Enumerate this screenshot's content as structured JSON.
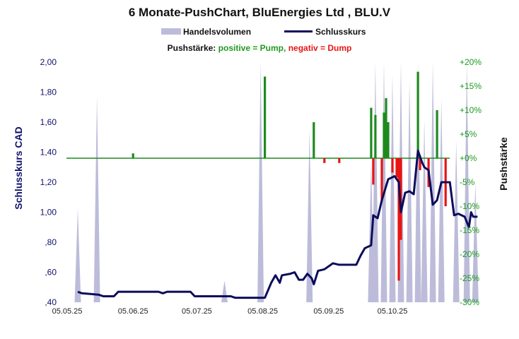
{
  "chart_data": {
    "type": "line",
    "title": "6 Monate-PushChart,  BluEnergies Ltd , BLU.V",
    "legend": {
      "volume_label": "Handelsvolumen",
      "price_label": "Schlusskurs",
      "placement": "top"
    },
    "push_legend": {
      "prefix": "Pushstärke:",
      "positive": "positive = Pump,",
      "negative": "negativ = Dump"
    },
    "ylabel_left": "Schlusskurs CAD",
    "ylabel_right": "Pushstärke",
    "xlabel": "",
    "x_ticks": [
      "05.05.25",
      "05.06.25",
      "05.07.25",
      "05.08.25",
      "05.09.25",
      "05.10.25"
    ],
    "y_ticks_left": [
      "2,00",
      "1,80",
      "1,60",
      "1,40",
      "1,20",
      "1,00",
      ",80",
      ",60",
      ",40"
    ],
    "y_ticks_right": [
      "+20%",
      "+15%",
      "+10%",
      "+5%",
      "+0%",
      "-5%",
      "-10%",
      "-15%",
      "-20%",
      "-25%",
      "-30%"
    ],
    "ylim_left": [
      0.4,
      2.0
    ],
    "ylim_right": [
      -30,
      20
    ],
    "grid": false,
    "colors": {
      "price_line": "#0c0c5c",
      "volume": "#bcbcda",
      "push_positive": "#1e8a1e",
      "push_negative": "#e81414",
      "zero_line": "#1e8a1e",
      "right_axis_text": "#1e9a1e",
      "left_axis_text": "#10106a"
    },
    "series": [
      {
        "name": "Schlusskurs",
        "points": [
          [
            "2025-05-10",
            0.47
          ],
          [
            "2025-05-12",
            0.46
          ],
          [
            "2025-05-16",
            0.455
          ],
          [
            "2025-05-20",
            0.45
          ],
          [
            "2025-05-22",
            0.44
          ],
          [
            "2025-05-27",
            0.44
          ],
          [
            "2025-05-29",
            0.47
          ],
          [
            "2025-06-11",
            0.47
          ],
          [
            "2025-06-17",
            0.47
          ],
          [
            "2025-06-19",
            0.46
          ],
          [
            "2025-06-21",
            0.47
          ],
          [
            "2025-07-02",
            0.47
          ],
          [
            "2025-07-04",
            0.44
          ],
          [
            "2025-07-21",
            0.44
          ],
          [
            "2025-07-23",
            0.43
          ],
          [
            "2025-08-06",
            0.43
          ],
          [
            "2025-08-09",
            0.53
          ],
          [
            "2025-08-11",
            0.58
          ],
          [
            "2025-08-13",
            0.53
          ],
          [
            "2025-08-14",
            0.58
          ],
          [
            "2025-08-18",
            0.59
          ],
          [
            "2025-08-20",
            0.6
          ],
          [
            "2025-08-22",
            0.55
          ],
          [
            "2025-08-24",
            0.55
          ],
          [
            "2025-08-26",
            0.59
          ],
          [
            "2025-08-28",
            0.56
          ],
          [
            "2025-08-29",
            0.52
          ],
          [
            "2025-08-31",
            0.61
          ],
          [
            "2025-09-03",
            0.62
          ],
          [
            "2025-09-07",
            0.66
          ],
          [
            "2025-09-10",
            0.65
          ],
          [
            "2025-09-14",
            0.65
          ],
          [
            "2025-09-18",
            0.65
          ],
          [
            "2025-09-20",
            0.71
          ],
          [
            "2025-09-22",
            0.76
          ],
          [
            "2025-09-25",
            0.78
          ],
          [
            "2025-09-26",
            0.98
          ],
          [
            "2025-09-28",
            0.96
          ],
          [
            "2025-09-30",
            1.08
          ],
          [
            "2025-10-03",
            1.22
          ],
          [
            "2025-10-06",
            1.24
          ],
          [
            "2025-10-08",
            1.2
          ],
          [
            "2025-10-09",
            1.0
          ],
          [
            "2025-10-11",
            1.13
          ],
          [
            "2025-10-13",
            1.14
          ],
          [
            "2025-10-15",
            1.12
          ],
          [
            "2025-10-17",
            1.41
          ],
          [
            "2025-10-19",
            1.33
          ],
          [
            "2025-10-20",
            1.3
          ],
          [
            "2025-10-22",
            1.28
          ],
          [
            "2025-10-24",
            1.05
          ],
          [
            "2025-10-26",
            1.08
          ],
          [
            "2025-10-28",
            1.2
          ],
          [
            "2025-11-01",
            1.2
          ],
          [
            "2025-11-03",
            0.98
          ],
          [
            "2025-11-05",
            0.99
          ],
          [
            "2025-11-08",
            0.97
          ],
          [
            "2025-11-10",
            0.9
          ],
          [
            "2025-11-11",
            1.0
          ],
          [
            "2025-11-12",
            0.97
          ],
          [
            "2025-11-14",
            0.97
          ]
        ]
      },
      {
        "name": "Pushstärke",
        "unit": "%",
        "bars": [
          [
            "2025-06-05",
            1
          ],
          [
            "2025-08-06",
            17
          ],
          [
            "2025-08-29",
            7.5
          ],
          [
            "2025-09-03",
            -1
          ],
          [
            "2025-09-10",
            -1
          ],
          [
            "2025-09-25",
            10.5
          ],
          [
            "2025-09-26",
            -5.5
          ],
          [
            "2025-09-27",
            9
          ],
          [
            "2025-09-30",
            -9
          ],
          [
            "2025-10-01",
            9.5
          ],
          [
            "2025-10-02",
            12.5
          ],
          [
            "2025-10-03",
            7.5
          ],
          [
            "2025-10-05",
            -3
          ],
          [
            "2025-10-07",
            -4
          ],
          [
            "2025-10-08",
            -25.5
          ],
          [
            "2025-10-09",
            -17
          ],
          [
            "2025-10-17",
            18
          ],
          [
            "2025-10-18",
            -2.5
          ],
          [
            "2025-10-22",
            -6
          ],
          [
            "2025-10-26",
            10
          ],
          [
            "2025-10-30",
            -10
          ]
        ]
      },
      {
        "name": "Handelsvolumen",
        "spikes": [
          [
            "2025-05-10",
            0.39
          ],
          [
            "2025-05-19",
            0.86
          ],
          [
            "2025-07-18",
            0.09
          ],
          [
            "2025-08-04",
            1.0
          ],
          [
            "2025-08-27",
            0.72
          ],
          [
            "2025-09-25",
            0.58
          ],
          [
            "2025-09-27",
            1.0
          ],
          [
            "2025-10-01",
            1.0
          ],
          [
            "2025-10-05",
            0.95
          ],
          [
            "2025-10-09",
            1.0
          ],
          [
            "2025-10-13",
            0.92
          ],
          [
            "2025-10-17",
            1.0
          ],
          [
            "2025-10-20",
            0.76
          ],
          [
            "2025-10-24",
            1.0
          ],
          [
            "2025-10-28",
            0.85
          ],
          [
            "2025-11-04",
            0.67
          ],
          [
            "2025-11-09",
            1.0
          ],
          [
            "2025-11-13",
            0.5
          ]
        ]
      }
    ]
  }
}
